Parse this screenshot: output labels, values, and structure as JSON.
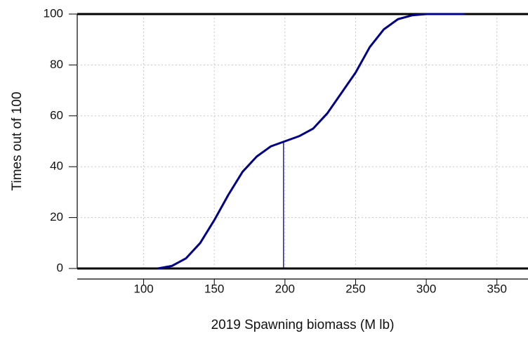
{
  "chart_data": {
    "type": "line",
    "xlabel": "2019 Spawning biomass (M lb)",
    "ylabel": "Times out of 100",
    "x": [
      110,
      120,
      130,
      140,
      150,
      160,
      170,
      180,
      190,
      200,
      210,
      220,
      230,
      240,
      250,
      260,
      270,
      280,
      290,
      300,
      327
    ],
    "values": [
      0,
      1,
      4,
      10,
      19,
      29,
      38,
      44,
      48,
      50,
      52,
      55,
      61,
      69,
      77,
      87,
      94,
      98,
      99.5,
      100,
      100
    ],
    "color": "#00008b",
    "xlim": [
      53,
      372
    ],
    "ylim": [
      0,
      100
    ],
    "xticks": [
      100,
      150,
      200,
      250,
      300,
      350
    ],
    "yticks": [
      0,
      20,
      40,
      60,
      80,
      100
    ],
    "grid": true,
    "hlines": [
      0,
      100
    ],
    "vline": {
      "x": 199,
      "y": 50
    }
  }
}
